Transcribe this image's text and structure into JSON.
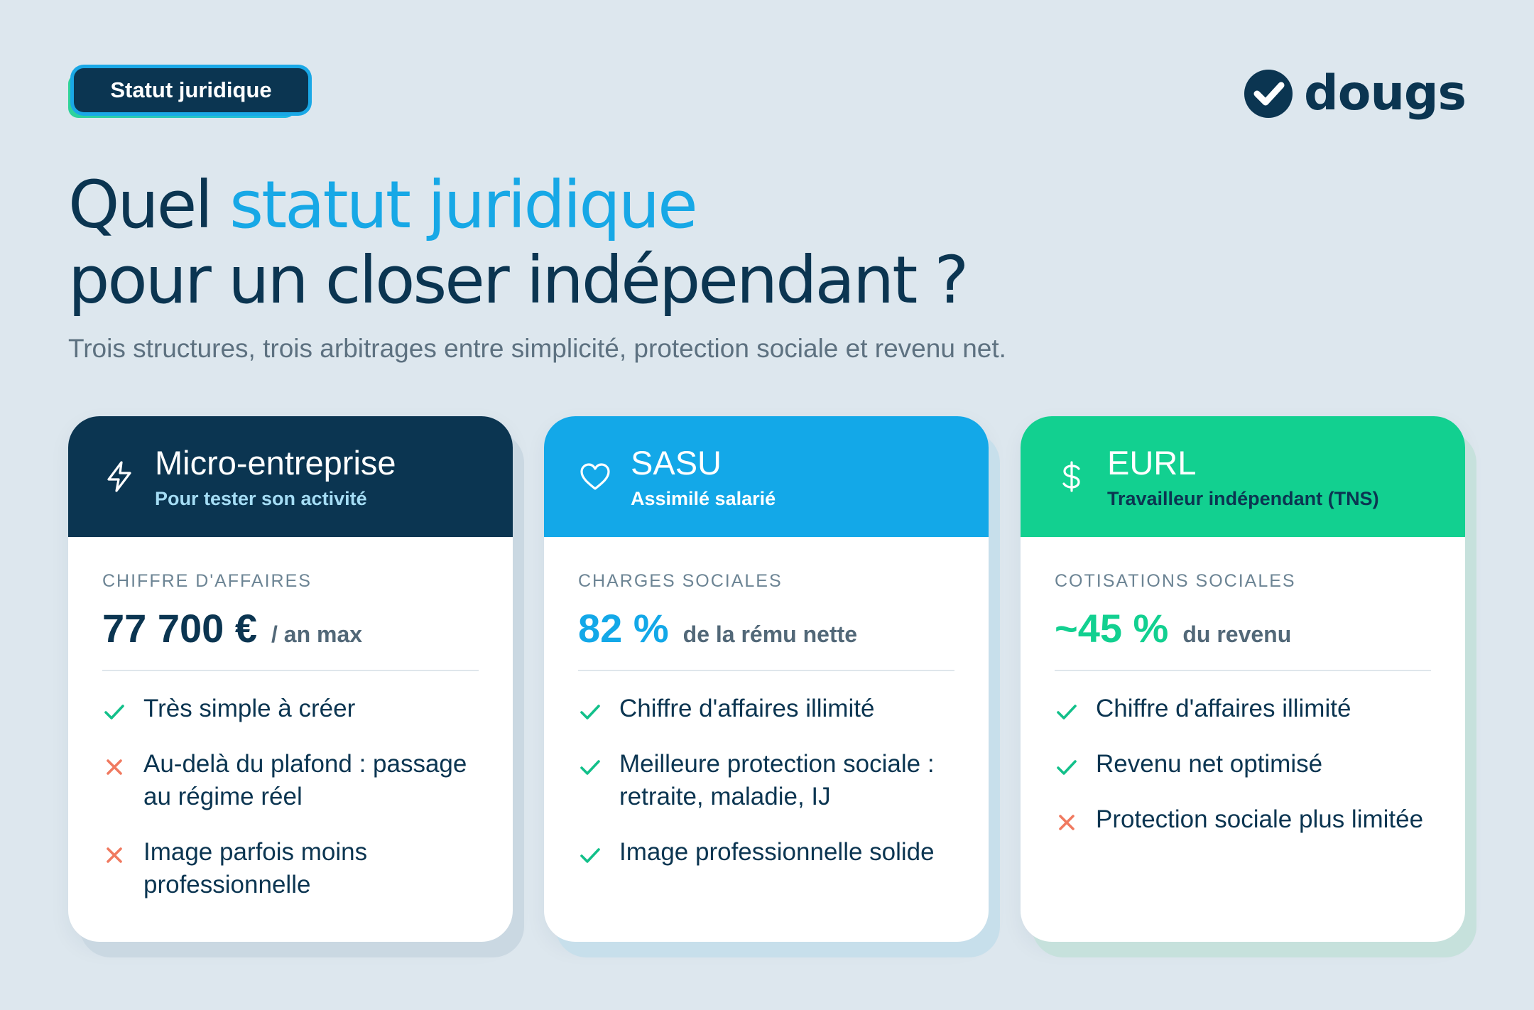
{
  "badge": {
    "label": "Statut juridique"
  },
  "logo": {
    "text": "dougs",
    "icon": "check-circle-icon"
  },
  "headline": {
    "part1": "Quel ",
    "accent": "statut juridique",
    "line2": "pour un closer indépendant ?"
  },
  "subtitle": "Trois structures, trois arbitrages entre simplicité, protection sociale et revenu net.",
  "colors": {
    "navy": "#0b3551",
    "blue": "#13a8e8",
    "green": "#12d090",
    "check": "#12c08a",
    "cross": "#f07a60"
  },
  "cards": [
    {
      "icon": "lightning-icon",
      "title": "Micro-entreprise",
      "subtitle": "Pour tester son activité",
      "metric_label": "CHIFFRE D'AFFAIRES",
      "metric_value": "77 700 €",
      "metric_unit": "/ an max",
      "items": [
        {
          "type": "check",
          "text": "Très simple à créer"
        },
        {
          "type": "cross",
          "text": "Au-delà du plafond : passage au régime réel"
        },
        {
          "type": "cross",
          "text": "Image parfois moins professionnelle"
        }
      ]
    },
    {
      "icon": "heart-icon",
      "title": "SASU",
      "subtitle": "Assimilé salarié",
      "metric_label": "CHARGES SOCIALES",
      "metric_value": "82 %",
      "metric_unit": "de la rému nette",
      "items": [
        {
          "type": "check",
          "text": "Chiffre d'affaires illimité"
        },
        {
          "type": "check",
          "text": "Meilleure protection sociale : retraite, maladie, IJ"
        },
        {
          "type": "check",
          "text": "Image professionnelle solide"
        }
      ]
    },
    {
      "icon": "dollar-icon",
      "title": "EURL",
      "subtitle": "Travailleur indépendant (TNS)",
      "metric_label": "COTISATIONS SOCIALES",
      "metric_value": "~45 %",
      "metric_unit": "du revenu",
      "items": [
        {
          "type": "check",
          "text": "Chiffre d'affaires illimité"
        },
        {
          "type": "check",
          "text": "Revenu net optimisé"
        },
        {
          "type": "cross",
          "text": "Protection sociale plus limitée"
        }
      ]
    }
  ]
}
